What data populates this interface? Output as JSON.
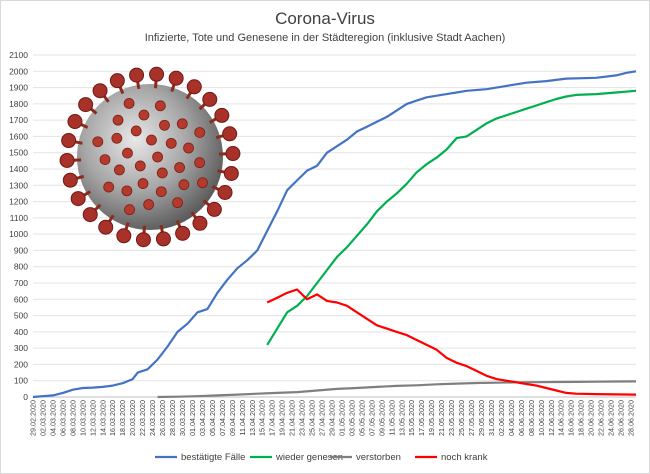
{
  "chart_data": {
    "type": "line",
    "title": "Corona-Virus",
    "subtitle": "Infizierte, Tote und Genesene in der Städteregion (inklusive Stadt Aachen)",
    "ylim": [
      0,
      2100
    ],
    "yticks": [
      0,
      100,
      200,
      300,
      400,
      500,
      600,
      700,
      800,
      900,
      1000,
      1100,
      1200,
      1300,
      1400,
      1500,
      1600,
      1700,
      1800,
      1900,
      2000,
      2100
    ],
    "grid": true,
    "legend_position": "bottom",
    "x_tick_labels": [
      "29.02.2020",
      "02.03.2020",
      "04.03.2020",
      "06.03.2020",
      "08.03.2020",
      "10.03.2020",
      "12.03.2020",
      "14.03.2020",
      "16.03.2020",
      "18.03.2020",
      "20.03.2020",
      "22.03.2020",
      "24.03.2020",
      "26.03.2020",
      "28.03.2020",
      "30.03.2020",
      "01.04.2020",
      "03.04.2020",
      "05.04.2020",
      "07.04.2020",
      "09.04.2020",
      "11.04.2020",
      "13.04.2020",
      "15.04.2020",
      "17.04.2020",
      "19.04.2020",
      "21.04.2020",
      "23.04.2020",
      "25.04.2020",
      "27.04.2020",
      "29.04.2020",
      "01.05.2020",
      "03.05.2020",
      "05.05.2020",
      "07.05.2020",
      "09.05.2020",
      "11.05.2020",
      "13.05.2020",
      "15.05.2020",
      "17.05.2020",
      "19.05.2020",
      "21.05.2020",
      "23.05.2020",
      "25.05.2020",
      "27.05.2020",
      "29.05.2020",
      "31.05.2020",
      "02.06.2020",
      "04.06.2020",
      "06.06.2020",
      "08.06.2020",
      "10.06.2020",
      "12.06.2020",
      "14.06.2020",
      "16.06.2020",
      "18.06.2020",
      "20.06.2020",
      "22.06.2020",
      "24.06.2020",
      "26.06.2020",
      "28.06.2020"
    ],
    "x_count": 122,
    "series": [
      {
        "name": "bestätigte Fälle",
        "color": "#4472c4",
        "points": [
          [
            0,
            0
          ],
          [
            4,
            10
          ],
          [
            6,
            25
          ],
          [
            8,
            45
          ],
          [
            10,
            55
          ],
          [
            12,
            58
          ],
          [
            14,
            62
          ],
          [
            16,
            70
          ],
          [
            18,
            85
          ],
          [
            20,
            110
          ],
          [
            21,
            150
          ],
          [
            23,
            170
          ],
          [
            25,
            230
          ],
          [
            27,
            310
          ],
          [
            29,
            400
          ],
          [
            31,
            450
          ],
          [
            33,
            520
          ],
          [
            35,
            540
          ],
          [
            37,
            640
          ],
          [
            39,
            720
          ],
          [
            41,
            790
          ],
          [
            43,
            840
          ],
          [
            45,
            900
          ],
          [
            47,
            1020
          ],
          [
            49,
            1140
          ],
          [
            51,
            1270
          ],
          [
            53,
            1330
          ],
          [
            55,
            1390
          ],
          [
            57,
            1420
          ],
          [
            59,
            1500
          ],
          [
            61,
            1540
          ],
          [
            63,
            1580
          ],
          [
            65,
            1630
          ],
          [
            67,
            1660
          ],
          [
            69,
            1690
          ],
          [
            71,
            1720
          ],
          [
            73,
            1760
          ],
          [
            75,
            1800
          ],
          [
            77,
            1820
          ],
          [
            79,
            1840
          ],
          [
            81,
            1850
          ],
          [
            83,
            1860
          ],
          [
            85,
            1870
          ],
          [
            87,
            1880
          ],
          [
            91,
            1890
          ],
          [
            95,
            1910
          ],
          [
            99,
            1930
          ],
          [
            103,
            1940
          ],
          [
            107,
            1955
          ],
          [
            113,
            1960
          ],
          [
            117,
            1975
          ],
          [
            119,
            1990
          ],
          [
            121,
            2000
          ]
        ]
      },
      {
        "name": "wieder genesen",
        "color": "#00b050",
        "points": [
          [
            47,
            320
          ],
          [
            49,
            420
          ],
          [
            51,
            520
          ],
          [
            53,
            560
          ],
          [
            55,
            620
          ],
          [
            57,
            700
          ],
          [
            59,
            780
          ],
          [
            61,
            860
          ],
          [
            63,
            920
          ],
          [
            65,
            990
          ],
          [
            67,
            1060
          ],
          [
            69,
            1140
          ],
          [
            71,
            1200
          ],
          [
            73,
            1250
          ],
          [
            75,
            1310
          ],
          [
            77,
            1380
          ],
          [
            79,
            1430
          ],
          [
            81,
            1470
          ],
          [
            83,
            1520
          ],
          [
            85,
            1590
          ],
          [
            87,
            1600
          ],
          [
            89,
            1640
          ],
          [
            91,
            1680
          ],
          [
            93,
            1710
          ],
          [
            95,
            1730
          ],
          [
            97,
            1750
          ],
          [
            99,
            1770
          ],
          [
            101,
            1790
          ],
          [
            103,
            1810
          ],
          [
            105,
            1830
          ],
          [
            107,
            1845
          ],
          [
            109,
            1855
          ],
          [
            113,
            1860
          ],
          [
            117,
            1870
          ],
          [
            121,
            1880
          ]
        ]
      },
      {
        "name": "verstorben",
        "color": "#7f7f7f",
        "points": [
          [
            25,
            0
          ],
          [
            29,
            2
          ],
          [
            33,
            5
          ],
          [
            37,
            10
          ],
          [
            41,
            15
          ],
          [
            45,
            20
          ],
          [
            49,
            25
          ],
          [
            53,
            30
          ],
          [
            57,
            40
          ],
          [
            61,
            50
          ],
          [
            65,
            55
          ],
          [
            69,
            62
          ],
          [
            73,
            68
          ],
          [
            77,
            72
          ],
          [
            81,
            78
          ],
          [
            85,
            82
          ],
          [
            89,
            86
          ],
          [
            93,
            88
          ],
          [
            97,
            90
          ],
          [
            101,
            91
          ],
          [
            105,
            92
          ],
          [
            109,
            93
          ],
          [
            113,
            94
          ],
          [
            117,
            95
          ],
          [
            121,
            96
          ]
        ]
      },
      {
        "name": "noch krank",
        "color": "#ff0000",
        "points": [
          [
            47,
            580
          ],
          [
            49,
            610
          ],
          [
            51,
            640
          ],
          [
            53,
            660
          ],
          [
            55,
            600
          ],
          [
            57,
            630
          ],
          [
            59,
            590
          ],
          [
            61,
            580
          ],
          [
            63,
            560
          ],
          [
            65,
            520
          ],
          [
            67,
            480
          ],
          [
            69,
            440
          ],
          [
            71,
            420
          ],
          [
            73,
            400
          ],
          [
            75,
            380
          ],
          [
            77,
            350
          ],
          [
            79,
            320
          ],
          [
            81,
            290
          ],
          [
            83,
            240
          ],
          [
            85,
            210
          ],
          [
            87,
            190
          ],
          [
            89,
            160
          ],
          [
            91,
            130
          ],
          [
            93,
            110
          ],
          [
            95,
            100
          ],
          [
            97,
            90
          ],
          [
            99,
            80
          ],
          [
            101,
            70
          ],
          [
            103,
            55
          ],
          [
            105,
            40
          ],
          [
            107,
            25
          ],
          [
            109,
            20
          ],
          [
            113,
            18
          ],
          [
            117,
            16
          ],
          [
            121,
            15
          ]
        ]
      }
    ]
  }
}
